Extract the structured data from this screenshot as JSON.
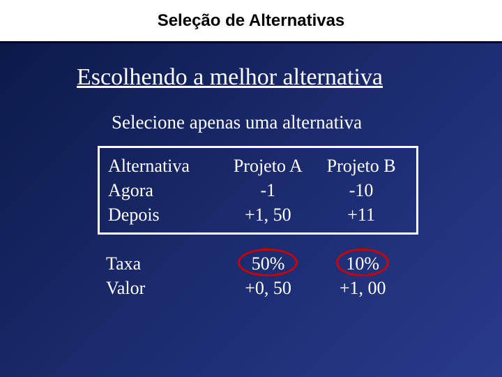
{
  "header": {
    "title": "Seleção de Alternativas"
  },
  "subtitle": "Escolhendo a melhor alternativa",
  "instruction": "Selecione apenas uma alternativa",
  "table1": {
    "rows": [
      {
        "c1": "Alternativa",
        "c2": "Projeto A",
        "c3": "Projeto B"
      },
      {
        "c1": "Agora",
        "c2": "-1",
        "c3": "-10"
      },
      {
        "c1": "Depois",
        "c2": "+1, 50",
        "c3": "+11"
      }
    ],
    "border_color": "#ffffff",
    "text_color": "#ffffff",
    "fontsize": 26
  },
  "table2": {
    "rows": [
      {
        "c1": "Taxa",
        "c2": "50%",
        "c3": "10%"
      },
      {
        "c1": "Valor",
        "c2": "+0, 50",
        "c3": "+1, 00"
      }
    ],
    "highlight_color": "#cc0000",
    "text_color": "#ffffff",
    "fontsize": 26
  },
  "colors": {
    "background_gradient": [
      "#0a1845",
      "#1a2a6c",
      "#2a3a8c"
    ],
    "header_bg": "#ffffff",
    "header_rule": "#000033",
    "text": "#ffffff"
  }
}
